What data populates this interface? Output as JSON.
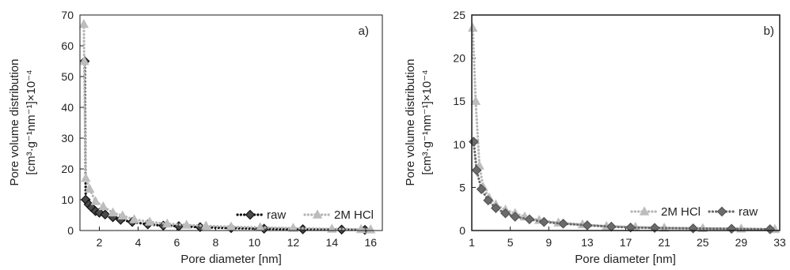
{
  "chart_data": [
    {
      "panel_label": "a)",
      "type": "line",
      "xlabel": "Pore diameter [nm]",
      "ylabel_line1": "Pore volume distribution",
      "ylabel_line2": "[cm³·g⁻¹nm⁻¹]×10⁻⁴",
      "xlim": [
        1,
        16.6
      ],
      "ylim": [
        0,
        70
      ],
      "xticks": [
        2,
        4,
        6,
        8,
        10,
        12,
        14,
        16
      ],
      "yticks": [
        0,
        10,
        20,
        30,
        40,
        50,
        60,
        70
      ],
      "legend_position": "bottom-right",
      "series": [
        {
          "name": "raw",
          "line_color": "#111111",
          "marker": "diamond",
          "marker_fill": "#4a4a4a",
          "marker_stroke": "#111111",
          "x": [
            1.25,
            1.3,
            1.45,
            1.6,
            1.8,
            2.0,
            2.3,
            2.7,
            3.1,
            3.7,
            4.5,
            5.3,
            6.1,
            7.2,
            8.8,
            10.5,
            12.5,
            14.5,
            15.7
          ],
          "y": [
            55,
            10,
            8.5,
            7.5,
            6.3,
            5.8,
            5.2,
            4.3,
            3.5,
            2.8,
            2.0,
            1.6,
            1.4,
            1.1,
            0.8,
            0.6,
            0.4,
            0.3,
            0.2
          ]
        },
        {
          "name": "2M HCl",
          "line_color": "#b5b5b5",
          "marker": "triangle",
          "marker_fill": "#bdbdbd",
          "marker_stroke": "#bdbdbd",
          "x": [
            1.2,
            1.22,
            1.3,
            1.5,
            1.8,
            2.2,
            2.7,
            3.2,
            3.8,
            4.6,
            5.5,
            6.5,
            7.5,
            8.8,
            10.3,
            12,
            14,
            15.5,
            16
          ],
          "y": [
            67,
            55,
            17,
            13.5,
            9.5,
            7.8,
            5.8,
            4.8,
            3.6,
            2.8,
            2.2,
            1.8,
            1.5,
            1.2,
            1.0,
            0.8,
            0.5,
            0.4,
            0.3
          ]
        }
      ]
    },
    {
      "panel_label": "b)",
      "type": "line",
      "xlabel": "Pore diameter [nm]",
      "ylabel_line1": "Pore volume distribution",
      "ylabel_line2": "[cm³·g⁻¹nm⁻¹]×10⁻⁴",
      "xlim": [
        1,
        33
      ],
      "ylim": [
        0,
        25
      ],
      "xticks": [
        1,
        5,
        9,
        13,
        17,
        21,
        25,
        29,
        33
      ],
      "yticks": [
        0,
        5,
        10,
        15,
        20,
        25
      ],
      "legend_position": "bottom-right",
      "series": [
        {
          "name": "2M HCl",
          "line_color": "#b5b5b5",
          "marker": "triangle",
          "marker_fill": "#bdbdbd",
          "marker_stroke": "#bdbdbd",
          "x": [
            1.1,
            1.4,
            1.8,
            2.2,
            2.8,
            3.5,
            4.5,
            5.5,
            6.5,
            8,
            10,
            12.5,
            15,
            18,
            21,
            25,
            29,
            32.5
          ],
          "y": [
            23.5,
            15,
            7.5,
            5,
            3.8,
            3.0,
            2.4,
            2.0,
            1.6,
            1.2,
            0.9,
            0.7,
            0.5,
            0.4,
            0.3,
            0.25,
            0.2,
            0.15
          ]
        },
        {
          "name": "raw",
          "line_color": "#6a6a6a",
          "marker": "diamond",
          "marker_fill": "#6b6b6b",
          "marker_stroke": "#555555",
          "x": [
            1.2,
            1.5,
            2.0,
            2.7,
            3.5,
            4.5,
            5.5,
            7,
            8.5,
            10.5,
            13,
            15.5,
            17.5,
            20,
            24,
            28,
            32
          ],
          "y": [
            10.3,
            7.0,
            4.8,
            3.5,
            2.6,
            2.0,
            1.6,
            1.3,
            1.0,
            0.8,
            0.6,
            0.45,
            0.35,
            0.3,
            0.25,
            0.2,
            0.15
          ]
        }
      ]
    }
  ]
}
